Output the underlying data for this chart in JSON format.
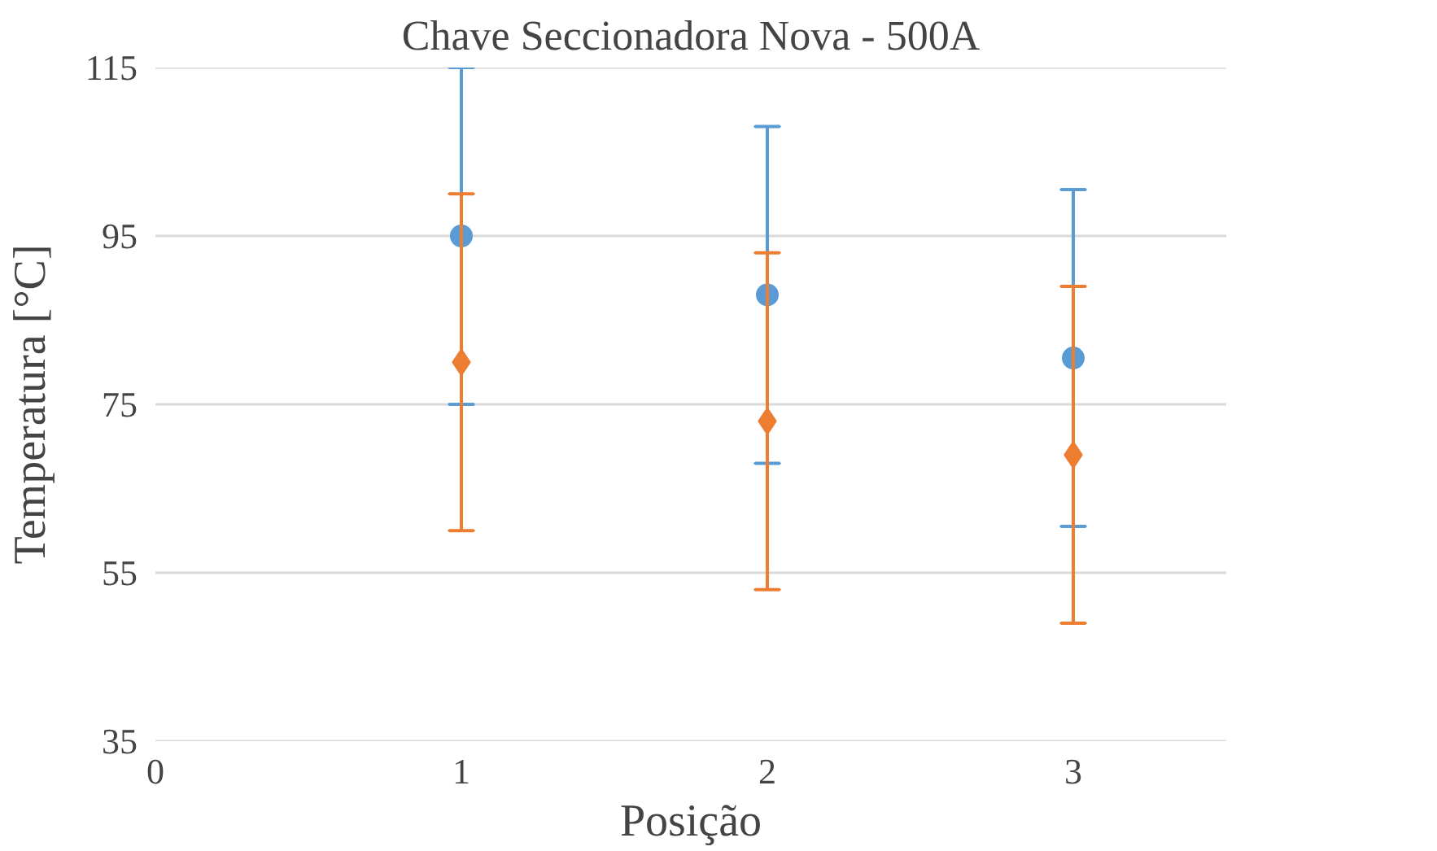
{
  "chart_data": {
    "type": "scatter",
    "title": "Chave Seccionadora Nova - 500A",
    "xlabel": "Posição",
    "ylabel": "Temperatura [°C]",
    "x": [
      1,
      2,
      3
    ],
    "series": [
      {
        "color": "#5b9bd5",
        "marker": "circle",
        "values": [
          95,
          88,
          80.5
        ],
        "errors": [
          20,
          20,
          20
        ]
      },
      {
        "color": "#ed7d31",
        "marker": "diamond",
        "values": [
          80,
          73,
          69
        ],
        "errors": [
          20,
          20,
          20
        ]
      }
    ],
    "xlim": [
      0,
      3.5
    ],
    "xticks": [
      0,
      1,
      2,
      3
    ],
    "ylim": [
      35,
      115
    ],
    "yticks": [
      35,
      55,
      75,
      95,
      115
    ],
    "grid": "y"
  }
}
